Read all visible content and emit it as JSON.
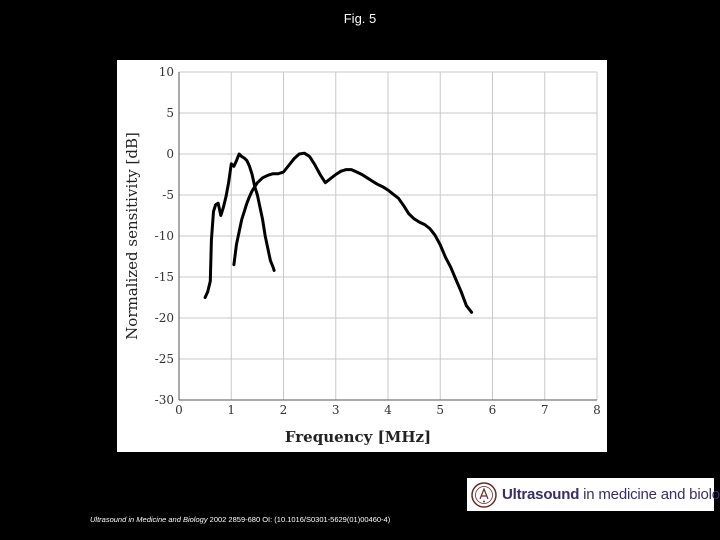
{
  "slide": {
    "title": "Fig. 5",
    "citation_journal": "Ultrasound in Medicine and Biology",
    "citation_rest": " 2002 2859-680 OI: (10.1016/S0301-5629(01)00460-4)"
  },
  "logo": {
    "word_bold": "Ultrasound",
    "word_rest": " in medicine and biology"
  },
  "chart_data": {
    "type": "line",
    "title": "",
    "xlabel": "Frequency [MHz]",
    "ylabel": "Normalized sensitivity [dB]",
    "xlim": [
      0,
      8
    ],
    "ylim": [
      -30,
      10
    ],
    "xticks": [
      0,
      1,
      2,
      3,
      4,
      5,
      6,
      7,
      8
    ],
    "yticks": [
      10,
      5,
      0,
      -5,
      -10,
      -15,
      -20,
      -25,
      -30
    ],
    "grid": true,
    "line_color": "#000000",
    "series": [
      {
        "x": [
          0.5,
          0.55,
          0.6,
          0.62,
          0.66,
          0.7,
          0.75,
          0.8,
          0.85,
          0.9,
          0.95,
          1.0,
          1.05,
          1.1,
          1.15,
          1.2,
          1.25,
          1.3,
          1.35,
          1.4,
          1.45,
          1.5,
          1.55,
          1.6,
          1.65,
          1.7,
          1.75,
          1.8,
          1.82
        ],
        "y": [
          -17.5,
          -16.8,
          -15.5,
          -10.5,
          -7.0,
          -6.2,
          -6.0,
          -7.5,
          -6.5,
          -5.2,
          -3.5,
          -1.2,
          -1.5,
          -0.8,
          0.0,
          -0.3,
          -0.5,
          -0.8,
          -1.5,
          -2.5,
          -4.0,
          -5.0,
          -6.5,
          -8.0,
          -10.0,
          -11.5,
          -13.0,
          -13.8,
          -14.2
        ]
      },
      {
        "x": [
          1.05,
          1.1,
          1.15,
          1.2,
          1.25,
          1.3,
          1.35,
          1.4,
          1.5,
          1.6,
          1.7,
          1.8,
          1.9,
          2.0,
          2.1,
          2.2,
          2.3,
          2.4,
          2.5,
          2.6,
          2.7,
          2.8,
          2.9,
          3.0,
          3.1,
          3.2,
          3.3,
          3.4,
          3.5,
          3.6,
          3.7,
          3.8,
          3.9,
          4.0,
          4.1,
          4.2,
          4.3,
          4.4,
          4.5,
          4.6,
          4.7,
          4.8,
          4.9,
          5.0,
          5.1,
          5.2,
          5.3,
          5.4,
          5.5,
          5.6
        ],
        "y": [
          -13.5,
          -11.0,
          -9.5,
          -8.0,
          -7.0,
          -6.0,
          -5.2,
          -4.5,
          -3.5,
          -2.9,
          -2.6,
          -2.4,
          -2.4,
          -2.2,
          -1.4,
          -0.6,
          0.0,
          0.1,
          -0.3,
          -1.3,
          -2.5,
          -3.5,
          -3.0,
          -2.5,
          -2.1,
          -1.9,
          -1.9,
          -2.2,
          -2.5,
          -2.9,
          -3.3,
          -3.7,
          -4.0,
          -4.4,
          -4.9,
          -5.4,
          -6.3,
          -7.3,
          -7.9,
          -8.3,
          -8.6,
          -9.1,
          -9.9,
          -11.1,
          -12.6,
          -13.8,
          -15.3,
          -16.8,
          -18.5,
          -19.3
        ]
      }
    ]
  }
}
